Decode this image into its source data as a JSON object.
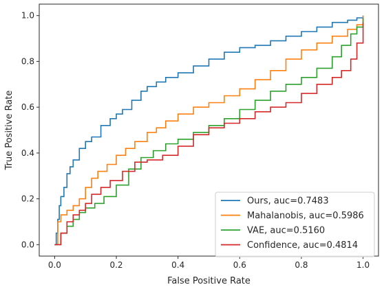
{
  "chart_data": {
    "type": "line",
    "title": "",
    "xlabel": "False Positive Rate",
    "ylabel": "True Positive Rate",
    "xlim": [
      -0.05,
      1.05
    ],
    "ylim": [
      -0.05,
      1.05
    ],
    "x_ticks": [
      "0.0",
      "0.2",
      "0.4",
      "0.6",
      "0.8",
      "1.0"
    ],
    "y_ticks": [
      "0.0",
      "0.2",
      "0.4",
      "0.6",
      "0.8",
      "1.0"
    ],
    "grid": false,
    "legend_position": "lower-right",
    "series": [
      {
        "name": "Ours, auc=0.7483",
        "color": "#1f77b4",
        "x": [
          0.0,
          0.005,
          0.01,
          0.015,
          0.02,
          0.03,
          0.04,
          0.05,
          0.06,
          0.08,
          0.1,
          0.12,
          0.15,
          0.18,
          0.2,
          0.22,
          0.25,
          0.28,
          0.3,
          0.33,
          0.36,
          0.4,
          0.45,
          0.5,
          0.55,
          0.6,
          0.65,
          0.7,
          0.75,
          0.8,
          0.85,
          0.9,
          0.95,
          0.98,
          1.0
        ],
        "y": [
          0.0,
          0.05,
          0.11,
          0.17,
          0.21,
          0.25,
          0.31,
          0.34,
          0.37,
          0.42,
          0.45,
          0.47,
          0.52,
          0.55,
          0.57,
          0.59,
          0.63,
          0.67,
          0.69,
          0.71,
          0.73,
          0.75,
          0.78,
          0.81,
          0.84,
          0.86,
          0.87,
          0.89,
          0.91,
          0.93,
          0.95,
          0.97,
          0.98,
          0.99,
          1.0
        ]
      },
      {
        "name": "Mahalanobis, auc=0.5986",
        "color": "#ff7f0e",
        "x": [
          0.0,
          0.01,
          0.02,
          0.04,
          0.06,
          0.08,
          0.1,
          0.12,
          0.14,
          0.17,
          0.2,
          0.23,
          0.26,
          0.3,
          0.33,
          0.36,
          0.4,
          0.45,
          0.5,
          0.55,
          0.6,
          0.65,
          0.7,
          0.75,
          0.8,
          0.85,
          0.9,
          0.95,
          0.98,
          1.0
        ],
        "y": [
          0.0,
          0.1,
          0.13,
          0.15,
          0.17,
          0.2,
          0.25,
          0.29,
          0.32,
          0.35,
          0.39,
          0.42,
          0.45,
          0.49,
          0.51,
          0.54,
          0.57,
          0.6,
          0.62,
          0.65,
          0.68,
          0.72,
          0.76,
          0.81,
          0.85,
          0.88,
          0.91,
          0.94,
          0.96,
          1.0
        ]
      },
      {
        "name": "VAE, auc=0.5160",
        "color": "#2ca02c",
        "x": [
          0.0,
          0.02,
          0.04,
          0.06,
          0.08,
          0.1,
          0.13,
          0.16,
          0.2,
          0.24,
          0.28,
          0.32,
          0.36,
          0.4,
          0.45,
          0.5,
          0.55,
          0.6,
          0.65,
          0.7,
          0.75,
          0.8,
          0.85,
          0.9,
          0.93,
          0.96,
          0.98,
          1.0
        ],
        "y": [
          0.0,
          0.05,
          0.08,
          0.11,
          0.14,
          0.16,
          0.18,
          0.21,
          0.26,
          0.33,
          0.38,
          0.41,
          0.44,
          0.46,
          0.49,
          0.52,
          0.55,
          0.59,
          0.63,
          0.67,
          0.7,
          0.73,
          0.77,
          0.82,
          0.87,
          0.92,
          0.95,
          0.99
        ]
      },
      {
        "name": "Confidence, auc=0.4814",
        "color": "#d62728",
        "x": [
          0.0,
          0.02,
          0.04,
          0.06,
          0.08,
          0.1,
          0.12,
          0.15,
          0.18,
          0.22,
          0.26,
          0.3,
          0.35,
          0.4,
          0.45,
          0.5,
          0.55,
          0.6,
          0.65,
          0.7,
          0.75,
          0.8,
          0.85,
          0.9,
          0.93,
          0.96,
          0.98,
          1.0
        ],
        "y": [
          0.0,
          0.05,
          0.1,
          0.13,
          0.15,
          0.18,
          0.22,
          0.25,
          0.28,
          0.32,
          0.36,
          0.37,
          0.39,
          0.43,
          0.48,
          0.51,
          0.53,
          0.55,
          0.58,
          0.6,
          0.62,
          0.66,
          0.7,
          0.73,
          0.76,
          0.81,
          0.88,
          0.97
        ]
      }
    ]
  }
}
